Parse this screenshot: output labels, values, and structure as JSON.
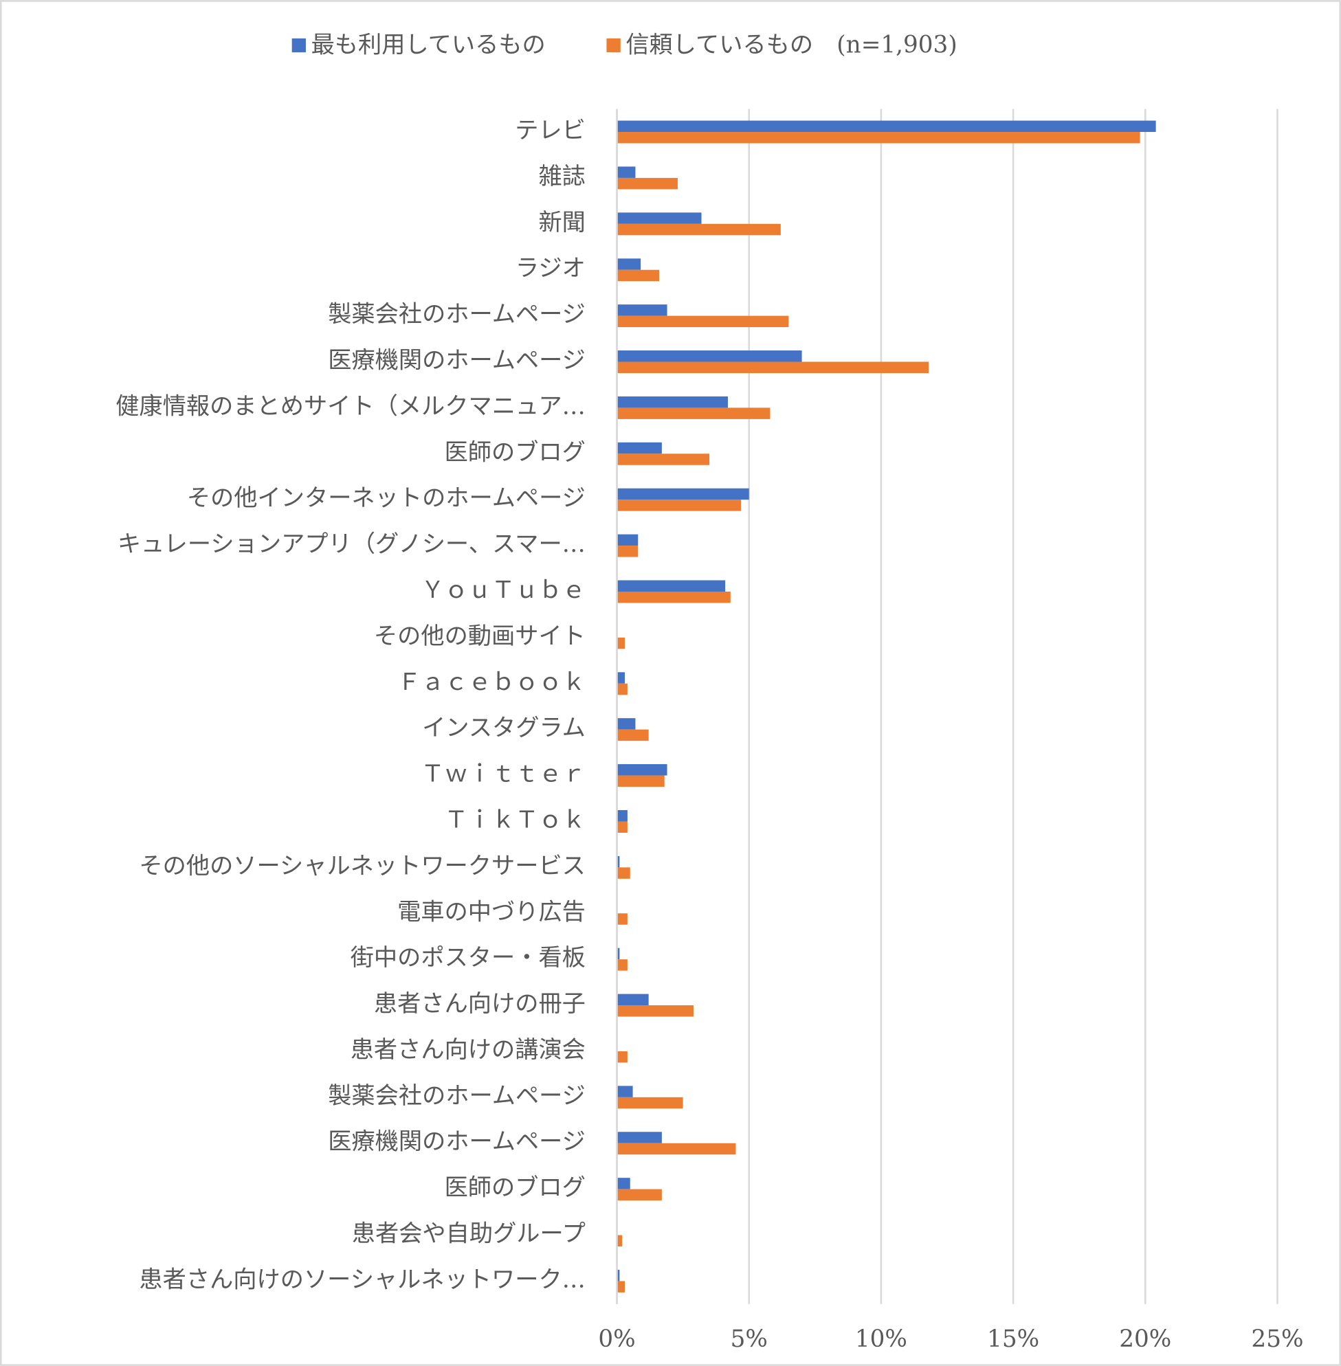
{
  "chart_data": {
    "type": "hbar",
    "categories": [
      "テレビ",
      "雑誌",
      "新聞",
      "ラジオ",
      "製薬会社のホームページ",
      "医療機関のホームページ",
      "健康情報のまとめサイト（メルクマニュア…",
      "医師のブログ",
      "その他インターネットのホームページ",
      "キュレーションアプリ（グノシー、スマー…",
      "ＹｏｕＴｕｂｅ",
      "その他の動画サイト",
      "Ｆａｃｅｂｏｏｋ",
      "インスタグラム",
      "Ｔｗｉｔｔｅｒ",
      "ＴｉｋＴｏｋ",
      "その他のソーシャルネットワークサービス",
      "電車の中づり広告",
      "街中のポスター・看板",
      "患者さん向けの冊子",
      "患者さん向けの講演会",
      "製薬会社のホームページ",
      "医療機関のホームページ",
      "医師のブログ",
      "患者会や自助グループ",
      "患者さん向けのソーシャルネットワーク…"
    ],
    "series": [
      {
        "name": "最も利用しているもの",
        "color": "#4472c4",
        "values": [
          20.4,
          0.7,
          3.2,
          0.9,
          1.9,
          7.0,
          4.2,
          1.7,
          5.0,
          0.8,
          4.1,
          0,
          0.3,
          0.7,
          1.9,
          0.4,
          0.1,
          0,
          0.1,
          1.2,
          0,
          0.6,
          1.7,
          0.5,
          0,
          0.1
        ]
      },
      {
        "name": "信頼しているもの　(n=1,903)",
        "color": "#ed7d31",
        "values": [
          19.8,
          2.3,
          6.2,
          1.6,
          6.5,
          11.8,
          5.8,
          3.5,
          4.7,
          0.8,
          4.3,
          0.3,
          0.4,
          1.2,
          1.8,
          0.4,
          0.5,
          0.4,
          0.4,
          2.9,
          0.4,
          2.5,
          4.5,
          1.7,
          0.2,
          0.3
        ]
      }
    ],
    "xlim": [
      0,
      25
    ],
    "xticks": [
      {
        "value": 0,
        "label": "0%"
      },
      {
        "value": 5,
        "label": "5%"
      },
      {
        "value": 10,
        "label": "10%"
      },
      {
        "value": 15,
        "label": "15%"
      },
      {
        "value": 20,
        "label": "20%"
      },
      {
        "value": 25,
        "label": "25%"
      }
    ],
    "grid": true,
    "legend": "top"
  }
}
